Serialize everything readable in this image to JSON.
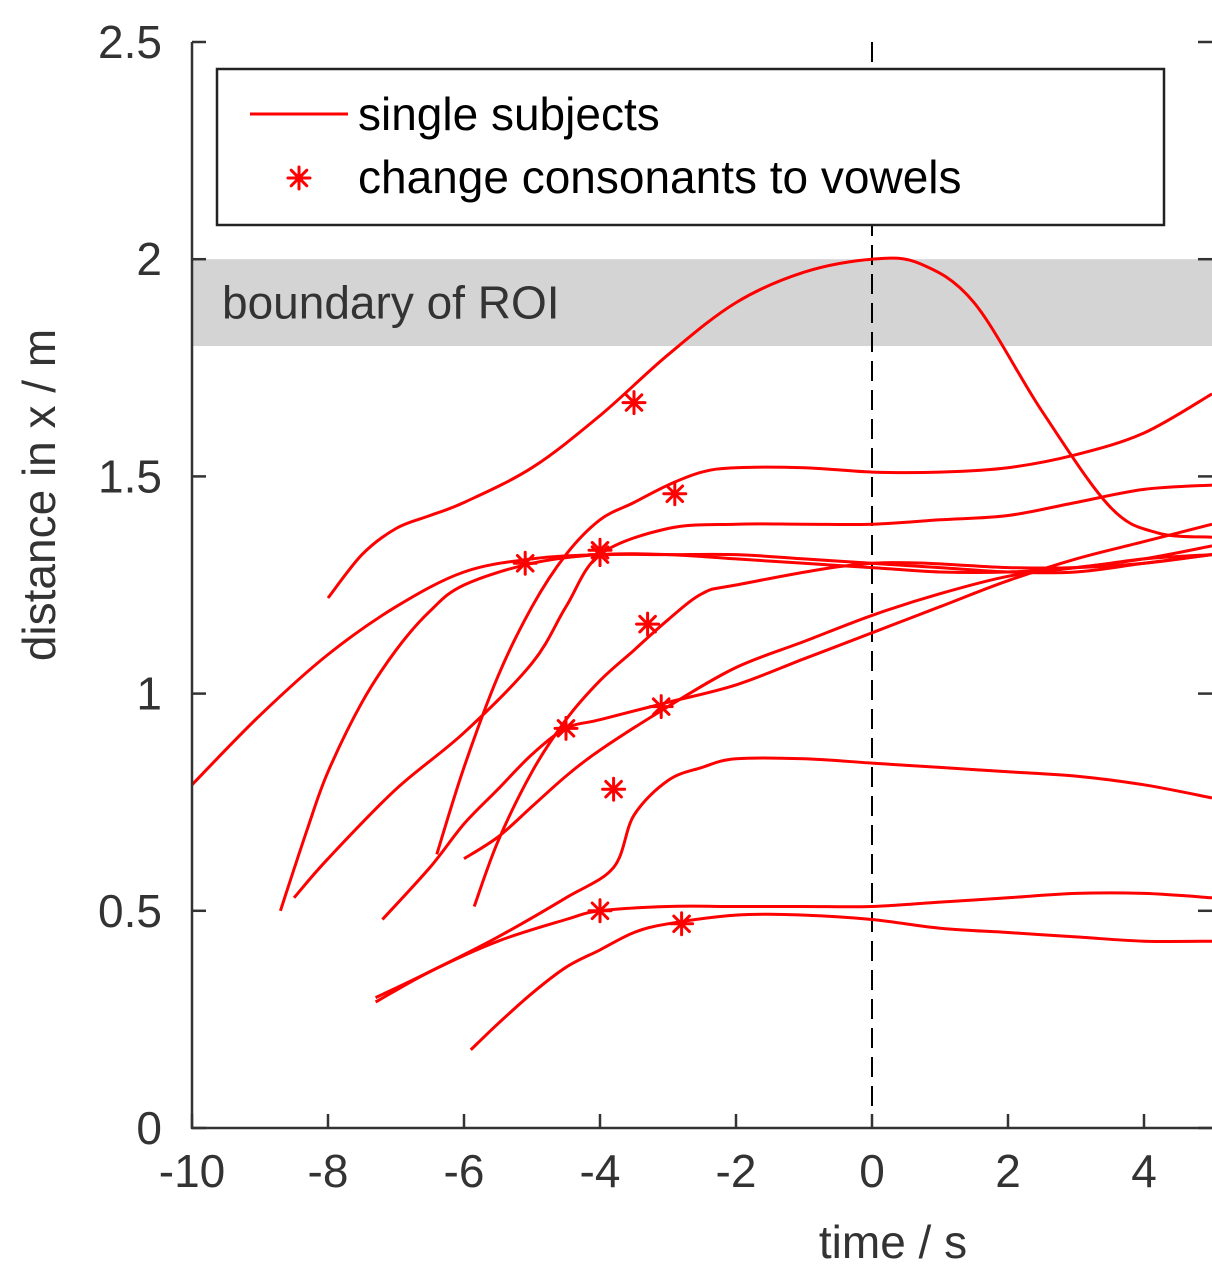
{
  "chart_data": {
    "type": "line",
    "xlabel": "time / s",
    "ylabel": "distance in x / m",
    "xlim": [
      -10,
      5
    ],
    "ylim": [
      0,
      2.5
    ],
    "x_ticks": [
      -10,
      -8,
      -6,
      -4,
      -2,
      0,
      2,
      4
    ],
    "x_tick_labels": [
      "-10",
      "-8",
      "-6",
      "-4",
      "-2",
      "0",
      "2",
      "4"
    ],
    "y_ticks": [
      0,
      0.5,
      1,
      1.5,
      2,
      2.5
    ],
    "y_tick_labels": [
      "0",
      "0.5",
      "1",
      "1.5",
      "2",
      "2.5"
    ],
    "grid": false,
    "legend_position": "top-left",
    "legend": [
      {
        "label": "single subjects",
        "style": "line"
      },
      {
        "label": "change consonants to vowels",
        "style": "asterisk"
      }
    ],
    "band": {
      "y_from": 1.8,
      "y_to": 2.0,
      "label": "boundary of ROI",
      "color": "#d4d4d4"
    },
    "vertical_reference_x": 0,
    "colors": {
      "series": "#ff0000",
      "axis": "#333333",
      "reference_line": "#000000"
    },
    "series": [
      {
        "points": [
          [
            -8,
            1.22
          ],
          [
            -7.5,
            1.32
          ],
          [
            -7,
            1.38
          ],
          [
            -6.5,
            1.41
          ],
          [
            -6,
            1.44
          ],
          [
            -5,
            1.52
          ],
          [
            -4,
            1.64
          ],
          [
            -3,
            1.78
          ],
          [
            -2,
            1.9
          ],
          [
            -1,
            1.97
          ],
          [
            0,
            2.0
          ],
          [
            0.7,
            1.99
          ],
          [
            1.5,
            1.9
          ],
          [
            2.5,
            1.65
          ],
          [
            3.5,
            1.43
          ],
          [
            4.2,
            1.37
          ],
          [
            5,
            1.36
          ]
        ],
        "marker": [
          -3.5,
          1.67
        ]
      },
      {
        "points": [
          [
            -10,
            0.79
          ],
          [
            -9,
            0.95
          ],
          [
            -8,
            1.09
          ],
          [
            -7,
            1.2
          ],
          [
            -6,
            1.28
          ],
          [
            -5,
            1.31
          ],
          [
            -4,
            1.32
          ],
          [
            -3,
            1.32
          ],
          [
            -2,
            1.32
          ],
          [
            -1,
            1.31
          ],
          [
            0,
            1.3
          ],
          [
            1,
            1.29
          ],
          [
            2,
            1.28
          ],
          [
            3,
            1.28
          ],
          [
            4,
            1.3
          ],
          [
            5,
            1.32
          ]
        ],
        "marker": [
          -5.1,
          1.3
        ]
      },
      {
        "points": [
          [
            -8.5,
            0.53
          ],
          [
            -8,
            0.62
          ],
          [
            -7,
            0.78
          ],
          [
            -6,
            0.91
          ],
          [
            -5,
            1.07
          ],
          [
            -4.5,
            1.2
          ],
          [
            -4,
            1.32
          ],
          [
            -3,
            1.38
          ],
          [
            -2,
            1.39
          ],
          [
            -1,
            1.39
          ],
          [
            0,
            1.39
          ],
          [
            1,
            1.4
          ],
          [
            2,
            1.41
          ],
          [
            3,
            1.44
          ],
          [
            4,
            1.47
          ],
          [
            5,
            1.48
          ]
        ],
        "marker": [
          -4,
          1.33
        ]
      },
      {
        "points": [
          [
            -6.4,
            0.63
          ],
          [
            -6,
            0.83
          ],
          [
            -5.5,
            1.04
          ],
          [
            -5,
            1.2
          ],
          [
            -4.5,
            1.32
          ],
          [
            -4,
            1.4
          ],
          [
            -3.5,
            1.44
          ],
          [
            -3,
            1.48
          ],
          [
            -2.5,
            1.51
          ],
          [
            -2,
            1.52
          ],
          [
            -1,
            1.52
          ],
          [
            0,
            1.51
          ],
          [
            1,
            1.51
          ],
          [
            2,
            1.52
          ],
          [
            3,
            1.55
          ],
          [
            4,
            1.6
          ],
          [
            5,
            1.69
          ]
        ],
        "marker": [
          -2.9,
          1.46
        ]
      },
      {
        "points": [
          [
            -8.7,
            0.5
          ],
          [
            -8.3,
            0.69
          ],
          [
            -8,
            0.82
          ],
          [
            -7.5,
            0.98
          ],
          [
            -7,
            1.1
          ],
          [
            -6.5,
            1.19
          ],
          [
            -6,
            1.25
          ],
          [
            -5,
            1.3
          ],
          [
            -4,
            1.32
          ],
          [
            -3,
            1.32
          ],
          [
            -2,
            1.31
          ],
          [
            -1,
            1.3
          ],
          [
            0,
            1.29
          ],
          [
            1,
            1.28
          ],
          [
            2,
            1.28
          ],
          [
            3,
            1.29
          ],
          [
            4,
            1.31
          ],
          [
            5,
            1.32
          ]
        ],
        "marker": [
          -4,
          1.32
        ]
      },
      {
        "points": [
          [
            -5.85,
            0.51
          ],
          [
            -5.5,
            0.66
          ],
          [
            -5,
            0.82
          ],
          [
            -4.5,
            0.94
          ],
          [
            -4,
            1.03
          ],
          [
            -3.5,
            1.1
          ],
          [
            -3,
            1.17
          ],
          [
            -2.5,
            1.23
          ],
          [
            -2,
            1.25
          ],
          [
            0,
            1.3
          ],
          [
            2,
            1.29
          ],
          [
            3,
            1.29
          ],
          [
            4,
            1.3
          ],
          [
            5,
            1.32
          ]
        ],
        "marker": [
          -3.3,
          1.16
        ]
      },
      {
        "points": [
          [
            -7.2,
            0.48
          ],
          [
            -6.5,
            0.6
          ],
          [
            -6,
            0.7
          ],
          [
            -5.5,
            0.78
          ],
          [
            -5,
            0.86
          ],
          [
            -4.5,
            0.92
          ],
          [
            -4,
            0.94
          ],
          [
            -3,
            0.98
          ],
          [
            -2,
            1.02
          ],
          [
            -1,
            1.08
          ],
          [
            0,
            1.14
          ],
          [
            1,
            1.2
          ],
          [
            2,
            1.26
          ],
          [
            3,
            1.31
          ],
          [
            4,
            1.35
          ],
          [
            5,
            1.39
          ]
        ],
        "marker": [
          -4.5,
          0.92
        ]
      },
      {
        "points": [
          [
            -6,
            0.62
          ],
          [
            -5.5,
            0.67
          ],
          [
            -5,
            0.74
          ],
          [
            -4.5,
            0.81
          ],
          [
            -4,
            0.87
          ],
          [
            -3,
            0.97
          ],
          [
            -2,
            1.06
          ],
          [
            -1,
            1.12
          ],
          [
            0,
            1.18
          ],
          [
            1,
            1.23
          ],
          [
            2,
            1.27
          ],
          [
            3,
            1.29
          ],
          [
            4,
            1.31
          ],
          [
            5,
            1.34
          ]
        ],
        "marker": [
          -3.1,
          0.97
        ]
      },
      {
        "points": [
          [
            -7.3,
            0.3
          ],
          [
            -6.5,
            0.36
          ],
          [
            -5.5,
            0.44
          ],
          [
            -4.5,
            0.53
          ],
          [
            -3.8,
            0.6
          ],
          [
            -3.5,
            0.72
          ],
          [
            -3,
            0.8
          ],
          [
            -2.5,
            0.83
          ],
          [
            -2,
            0.85
          ],
          [
            -1,
            0.85
          ],
          [
            0,
            0.84
          ],
          [
            1,
            0.83
          ],
          [
            2,
            0.82
          ],
          [
            3,
            0.81
          ],
          [
            4,
            0.79
          ],
          [
            5,
            0.76
          ]
        ],
        "marker": [
          -3.8,
          0.78
        ]
      },
      {
        "points": [
          [
            -7.3,
            0.29
          ],
          [
            -6.5,
            0.36
          ],
          [
            -5.5,
            0.43
          ],
          [
            -4.5,
            0.48
          ],
          [
            -4,
            0.5
          ],
          [
            -3,
            0.51
          ],
          [
            -2,
            0.51
          ],
          [
            -1,
            0.51
          ],
          [
            0,
            0.51
          ],
          [
            1,
            0.52
          ],
          [
            2,
            0.53
          ],
          [
            3,
            0.54
          ],
          [
            4,
            0.54
          ],
          [
            5,
            0.53
          ]
        ],
        "marker": [
          -4,
          0.5
        ]
      },
      {
        "points": [
          [
            -5.9,
            0.18
          ],
          [
            -5.5,
            0.24
          ],
          [
            -5,
            0.31
          ],
          [
            -4.5,
            0.37
          ],
          [
            -4,
            0.41
          ],
          [
            -3.5,
            0.45
          ],
          [
            -3,
            0.47
          ],
          [
            -2,
            0.49
          ],
          [
            -1,
            0.49
          ],
          [
            0,
            0.48
          ],
          [
            1,
            0.46
          ],
          [
            2,
            0.45
          ],
          [
            3,
            0.44
          ],
          [
            4,
            0.43
          ],
          [
            5,
            0.43
          ]
        ],
        "marker": [
          -2.8,
          0.47
        ]
      }
    ]
  }
}
